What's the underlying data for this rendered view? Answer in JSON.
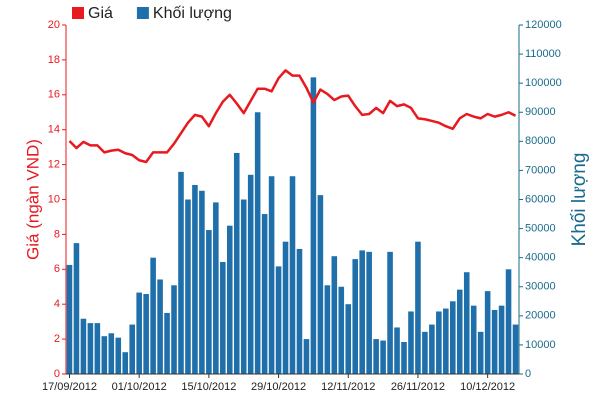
{
  "chart_data": {
    "type": "combo",
    "y_label": "Giá (ngàn VND)",
    "y2_label": "Khối lượng",
    "categories": [
      "17/09/2012",
      null,
      null,
      null,
      null,
      null,
      null,
      null,
      null,
      null,
      "01/10/2012",
      null,
      null,
      null,
      null,
      null,
      null,
      null,
      null,
      null,
      "15/10/2012",
      null,
      null,
      null,
      null,
      null,
      null,
      null,
      null,
      null,
      "29/10/2012",
      null,
      null,
      null,
      null,
      null,
      null,
      null,
      null,
      null,
      "12/11/2012",
      null,
      null,
      null,
      null,
      null,
      null,
      null,
      null,
      null,
      "26/11/2012",
      null,
      null,
      null,
      null,
      null,
      null,
      null,
      null,
      null,
      "10/12/2012",
      null,
      null,
      null,
      null
    ],
    "series": [
      {
        "name": "Giá",
        "type": "line",
        "color": "#e8191f",
        "values": [
          13.35,
          12.95,
          13.3,
          13.1,
          13.1,
          12.7,
          12.8,
          12.85,
          12.65,
          12.55,
          12.25,
          12.15,
          12.7,
          12.7,
          12.7,
          13.2,
          13.8,
          14.4,
          14.85,
          14.75,
          14.2,
          14.95,
          15.6,
          16.0,
          15.5,
          14.95,
          15.65,
          16.35,
          16.35,
          16.2,
          16.95,
          17.4,
          17.1,
          17.1,
          16.4,
          15.55,
          16.3,
          16.05,
          15.7,
          15.9,
          15.95,
          15.35,
          14.85,
          14.9,
          15.25,
          14.95,
          15.65,
          15.35,
          15.45,
          15.25,
          14.65,
          14.6,
          14.5,
          14.4,
          14.2,
          14.05,
          14.65,
          14.9,
          14.75,
          14.65,
          14.9,
          14.75,
          14.85,
          15.0,
          14.8
        ]
      },
      {
        "name": "Khối lượng",
        "type": "bar",
        "axis": "y2",
        "color": "#1f6fab",
        "values": [
          37500,
          45000,
          19000,
          17500,
          17500,
          13000,
          14000,
          12500,
          7500,
          17000,
          28000,
          27500,
          40000,
          32500,
          21000,
          30500,
          69500,
          60000,
          65000,
          63000,
          49500,
          59000,
          38500,
          51000,
          76000,
          60000,
          68500,
          90000,
          55000,
          68000,
          37000,
          45500,
          68000,
          43000,
          12000,
          102000,
          61500,
          30500,
          40500,
          30000,
          24000,
          39500,
          42500,
          42000,
          12000,
          11500,
          42000,
          16000,
          11000,
          21500,
          45500,
          14500,
          17000,
          21500,
          22500,
          25000,
          29000,
          35000,
          23500,
          14500,
          28500,
          22000,
          23500,
          36000,
          17000
        ]
      }
    ],
    "ylim": [
      0,
      20
    ],
    "yticks": [
      0,
      2,
      4,
      6,
      8,
      10,
      12,
      14,
      16,
      18,
      20
    ],
    "y2lim": [
      0,
      120000
    ],
    "y2ticks": [
      0,
      10000,
      20000,
      30000,
      40000,
      50000,
      60000,
      70000,
      80000,
      90000,
      100000,
      110000,
      120000
    ],
    "y_color": "#e8191f",
    "y2_color": "#1a6b8a",
    "grid": false
  }
}
